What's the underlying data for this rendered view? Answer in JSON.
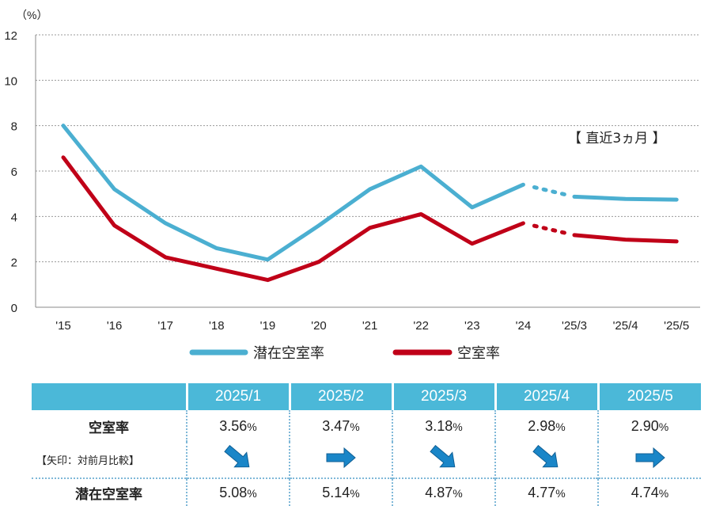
{
  "chart_data": {
    "type": "line",
    "categories": [
      "'15",
      "'16",
      "'17",
      "'18",
      "'19",
      "'20",
      "'21",
      "'22",
      "'23",
      "'24",
      "'25/3",
      "'25/4",
      "'25/5"
    ],
    "series": [
      {
        "name": "潜在空室率",
        "color": "#4bafd1",
        "values": [
          8.0,
          5.2,
          3.7,
          2.6,
          2.1,
          3.6,
          5.2,
          6.2,
          4.4,
          5.4,
          4.87,
          4.77,
          4.74
        ]
      },
      {
        "name": "空室率",
        "color": "#c00018",
        "values": [
          6.6,
          3.6,
          2.2,
          1.7,
          1.2,
          2.0,
          3.5,
          4.1,
          2.8,
          3.7,
          3.18,
          2.98,
          2.9
        ]
      }
    ],
    "ylim": [
      0,
      12
    ],
    "yticks": [
      "0",
      "2",
      "4",
      "6",
      "8",
      "10",
      "12"
    ],
    "ylabel": "（%）",
    "annotation": "【 直近3ヵ月 】",
    "grid": true,
    "legend_position": "bottom"
  },
  "table": {
    "months": [
      "2025/1",
      "2025/2",
      "2025/3",
      "2025/4",
      "2025/5"
    ],
    "vacancy_label": "空室率",
    "vacancy": [
      "3.56",
      "3.47",
      "3.18",
      "2.98",
      "2.90"
    ],
    "arrow_note": "【矢印：対前月比較】",
    "arrows": [
      "down",
      "right",
      "down",
      "down",
      "right"
    ],
    "potential_label": "潜在空室率",
    "potential": [
      "5.08",
      "5.14",
      "4.87",
      "4.77",
      "4.74"
    ],
    "pct": "%",
    "arrow_color": "#1a86c8"
  }
}
